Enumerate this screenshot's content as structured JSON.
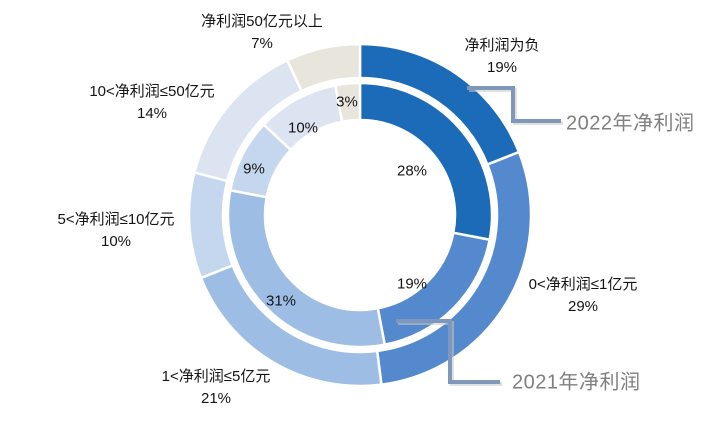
{
  "chart_data": {
    "type": "donut",
    "title": "",
    "categories": [
      "净利润为负",
      "0<净利润≤1亿元",
      "1<净利润≤5亿元",
      "5<净利润≤10亿元",
      "10<净利润≤50亿元",
      "净利润50亿元以上"
    ],
    "series": [
      {
        "name": "2022年净利润",
        "ring": "outer",
        "values": [
          19,
          29,
          21,
          10,
          14,
          7
        ]
      },
      {
        "name": "2021年净利润",
        "ring": "inner",
        "values": [
          28,
          19,
          31,
          9,
          10,
          3
        ]
      }
    ],
    "unit": "%",
    "start_angle": "top",
    "direction": "clockwise",
    "colors": [
      "#1C6BB8",
      "#5589CD",
      "#9EBDE5",
      "#C5D7EE",
      "#DCE4F2",
      "#E8E6DC"
    ],
    "slice_border_color": "#FFFFFF",
    "callout_line_color": "#7E97BA",
    "callout_text_color": "#7F7F7F",
    "background": "#FFFFFF",
    "legend_position": "callout-labels"
  },
  "labels": {
    "categories": [
      {
        "name": "净利润为负",
        "pct": "19%"
      },
      {
        "name": "0<净利润≤1亿元",
        "pct": "29%"
      },
      {
        "name": "1<净利润≤5亿元",
        "pct": "21%"
      },
      {
        "name": "5<净利润≤10亿元",
        "pct": "10%"
      },
      {
        "name": "10<净利润≤50亿元",
        "pct": "14%"
      },
      {
        "name": "净利润50亿元以上",
        "pct": "7%"
      }
    ],
    "inner_pcts": [
      "28%",
      "19%",
      "31%",
      "9%",
      "10%",
      "3%"
    ],
    "callouts": {
      "outer": "2022年净利润",
      "inner": "2021年净利润"
    }
  }
}
